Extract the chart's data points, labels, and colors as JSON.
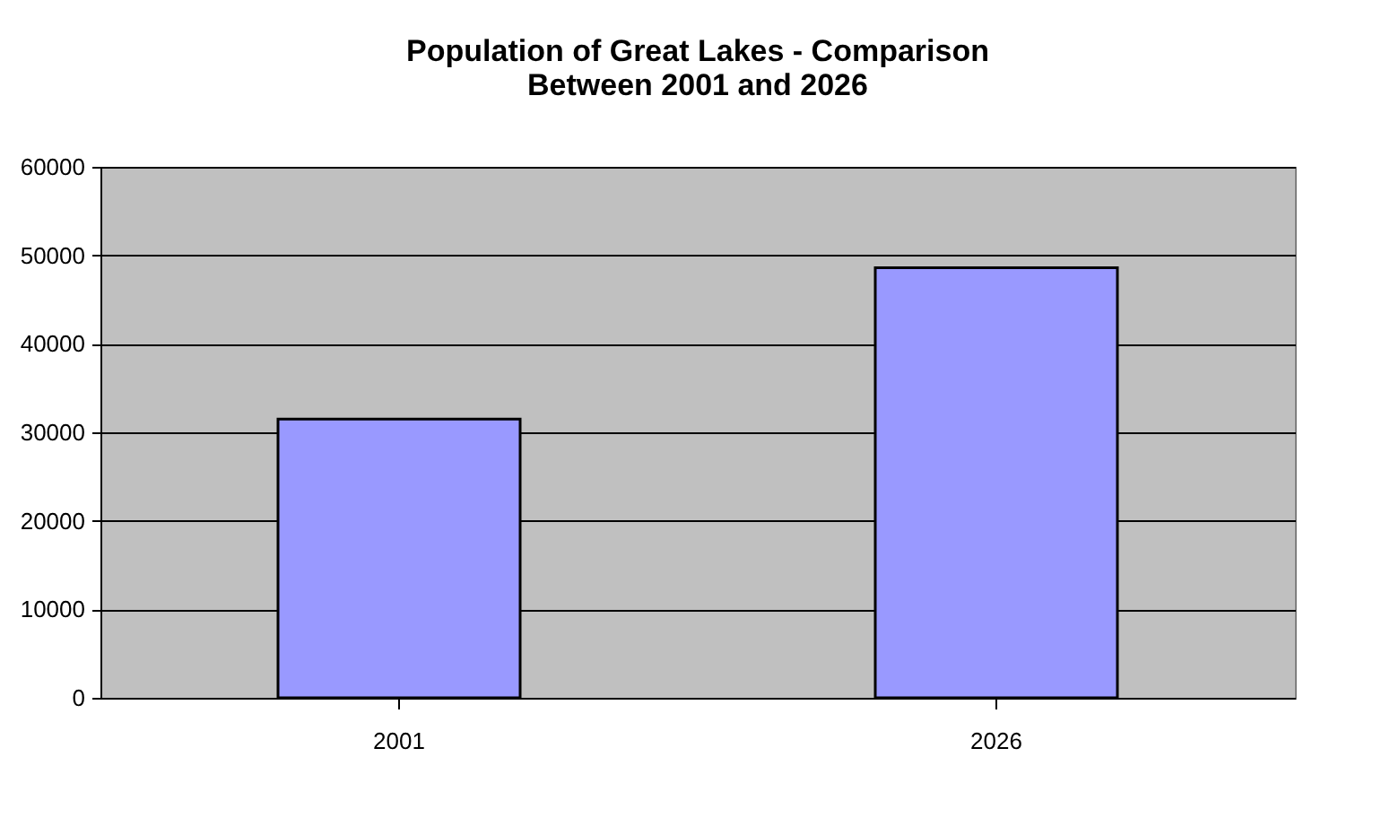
{
  "chart_data": {
    "type": "bar",
    "title": "Population of Great Lakes  - Comparison Between 2001 and 2026",
    "categories": [
      "2001",
      "2026"
    ],
    "values": [
      31500,
      48600
    ],
    "color": "#9999ff",
    "ylim": [
      0,
      60000
    ],
    "yticks": [
      0,
      10000,
      20000,
      30000,
      40000,
      50000,
      60000
    ],
    "grid": "y"
  }
}
